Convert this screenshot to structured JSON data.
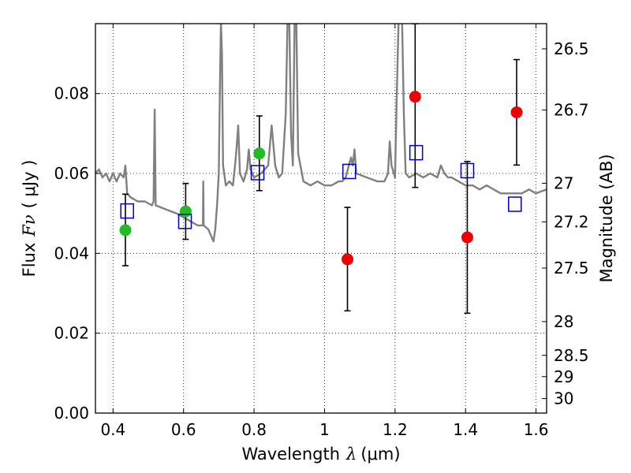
{
  "chart_data": {
    "type": "scatter",
    "xlabel": {
      "text": "Wavelength",
      "symbol": "λ",
      "unit": "(μm)"
    },
    "ylabel": {
      "text": "Flux",
      "symbol": "Fν",
      "unit": "( μJy )"
    },
    "ylabel_right": "Magnitude (AB)",
    "xlim": [
      0.35,
      1.63
    ],
    "ylim": [
      0.0,
      0.0975
    ],
    "x_ticks": [
      0.4,
      0.6,
      0.8,
      1.0,
      1.2,
      1.4,
      1.6
    ],
    "x_tick_labels": [
      "0.4",
      "0.6",
      "0.8",
      "1",
      "1.2",
      "1.4",
      "1.6"
    ],
    "y_ticks": [
      0.0,
      0.02,
      0.04,
      0.06,
      0.08
    ],
    "y_tick_labels": [
      "0.00",
      "0.02",
      "0.04",
      "0.06",
      "0.08"
    ],
    "right_ticks": [
      {
        "label": "26.5",
        "mag": 26.5
      },
      {
        "label": "26.7",
        "mag": 26.7
      },
      {
        "label": "27",
        "mag": 27.0
      },
      {
        "label": "27.2",
        "mag": 27.2
      },
      {
        "label": "27.5",
        "mag": 27.5
      },
      {
        "label": "28",
        "mag": 28.0
      },
      {
        "label": "28.5",
        "mag": 28.5
      },
      {
        "label": "29",
        "mag": 29.0
      },
      {
        "label": "30",
        "mag": 30.0
      }
    ],
    "grid": true,
    "colors": {
      "spectrum": "#808080",
      "detected_points": "#22bb22",
      "upper_points": "#ee0000",
      "model_squares": "#0000cc",
      "errorbars": "#000000"
    },
    "spectrum": [
      [
        0.35,
        0.06
      ],
      [
        0.36,
        0.061
      ],
      [
        0.37,
        0.059
      ],
      [
        0.38,
        0.06
      ],
      [
        0.39,
        0.058
      ],
      [
        0.4,
        0.06
      ],
      [
        0.41,
        0.058
      ],
      [
        0.42,
        0.06
      ],
      [
        0.43,
        0.059
      ],
      [
        0.435,
        0.062
      ],
      [
        0.44,
        0.055
      ],
      [
        0.45,
        0.054
      ],
      [
        0.47,
        0.053
      ],
      [
        0.49,
        0.053
      ],
      [
        0.51,
        0.052
      ],
      [
        0.515,
        0.053
      ],
      [
        0.518,
        0.076
      ],
      [
        0.521,
        0.052
      ],
      [
        0.55,
        0.051
      ],
      [
        0.58,
        0.05
      ],
      [
        0.6,
        0.049
      ],
      [
        0.62,
        0.048
      ],
      [
        0.64,
        0.047
      ],
      [
        0.655,
        0.047
      ],
      [
        0.656,
        0.058
      ],
      [
        0.657,
        0.047
      ],
      [
        0.67,
        0.046
      ],
      [
        0.68,
        0.044
      ],
      [
        0.685,
        0.043
      ],
      [
        0.69,
        0.046
      ],
      [
        0.695,
        0.052
      ],
      [
        0.7,
        0.06
      ],
      [
        0.703,
        0.08
      ],
      [
        0.706,
        0.098
      ],
      [
        0.709,
        0.09
      ],
      [
        0.712,
        0.062
      ],
      [
        0.72,
        0.057
      ],
      [
        0.73,
        0.058
      ],
      [
        0.74,
        0.057
      ],
      [
        0.745,
        0.061
      ],
      [
        0.75,
        0.066
      ],
      [
        0.755,
        0.072
      ],
      [
        0.76,
        0.06
      ],
      [
        0.77,
        0.058
      ],
      [
        0.78,
        0.061
      ],
      [
        0.785,
        0.066
      ],
      [
        0.79,
        0.061
      ],
      [
        0.8,
        0.059
      ],
      [
        0.82,
        0.06
      ],
      [
        0.84,
        0.062
      ],
      [
        0.85,
        0.072
      ],
      [
        0.86,
        0.062
      ],
      [
        0.87,
        0.059
      ],
      [
        0.88,
        0.06
      ],
      [
        0.89,
        0.075
      ],
      [
        0.895,
        0.098
      ],
      [
        0.9,
        0.098
      ],
      [
        0.905,
        0.07
      ],
      [
        0.91,
        0.062
      ],
      [
        0.915,
        0.098
      ],
      [
        0.92,
        0.098
      ],
      [
        0.925,
        0.065
      ],
      [
        0.94,
        0.058
      ],
      [
        0.96,
        0.057
      ],
      [
        0.98,
        0.058
      ],
      [
        1.0,
        0.057
      ],
      [
        1.02,
        0.057
      ],
      [
        1.04,
        0.058
      ],
      [
        1.05,
        0.058
      ],
      [
        1.06,
        0.059
      ],
      [
        1.075,
        0.064
      ],
      [
        1.08,
        0.062
      ],
      [
        1.085,
        0.066
      ],
      [
        1.09,
        0.06
      ],
      [
        1.12,
        0.059
      ],
      [
        1.15,
        0.058
      ],
      [
        1.17,
        0.058
      ],
      [
        1.18,
        0.06
      ],
      [
        1.185,
        0.068
      ],
      [
        1.19,
        0.062
      ],
      [
        1.2,
        0.059
      ],
      [
        1.205,
        0.08
      ],
      [
        1.21,
        0.098
      ],
      [
        1.22,
        0.098
      ],
      [
        1.225,
        0.075
      ],
      [
        1.23,
        0.06
      ],
      [
        1.24,
        0.059
      ],
      [
        1.26,
        0.06
      ],
      [
        1.28,
        0.059
      ],
      [
        1.3,
        0.06
      ],
      [
        1.32,
        0.059
      ],
      [
        1.33,
        0.062
      ],
      [
        1.34,
        0.06
      ],
      [
        1.35,
        0.059
      ],
      [
        1.36,
        0.059
      ],
      [
        1.38,
        0.058
      ],
      [
        1.4,
        0.057
      ],
      [
        1.42,
        0.057
      ],
      [
        1.44,
        0.056
      ],
      [
        1.46,
        0.057
      ],
      [
        1.48,
        0.056
      ],
      [
        1.5,
        0.055
      ],
      [
        1.52,
        0.055
      ],
      [
        1.54,
        0.055
      ],
      [
        1.56,
        0.055
      ],
      [
        1.58,
        0.056
      ],
      [
        1.6,
        0.055
      ],
      [
        1.63,
        0.056
      ]
    ],
    "series": [
      {
        "marker": "circle",
        "color": "detected_points",
        "points": [
          {
            "x": 0.435,
            "y": 0.0458,
            "err": [
              0.0369,
              0.0548
            ]
          },
          {
            "x": 0.606,
            "y": 0.0505,
            "err": [
              0.0435,
              0.0575
            ]
          },
          {
            "x": 0.815,
            "y": 0.065,
            "err": [
              0.0557,
              0.0744
            ]
          }
        ]
      },
      {
        "marker": "circle",
        "color": "upper_points",
        "points": [
          {
            "x": 1.065,
            "y": 0.0385,
            "err": [
              0.0256,
              0.0515
            ]
          },
          {
            "x": 1.257,
            "y": 0.0792,
            "err": [
              0.0565,
              0.0975
            ]
          },
          {
            "x": 1.405,
            "y": 0.044,
            "err": [
              0.025,
              0.063
            ]
          },
          {
            "x": 1.545,
            "y": 0.0753,
            "err": [
              0.0621,
              0.0885
            ]
          }
        ]
      },
      {
        "marker": "square",
        "color": "model_squares",
        "points": [
          {
            "x": 0.44,
            "y": 0.0506
          },
          {
            "x": 0.604,
            "y": 0.048
          },
          {
            "x": 0.81,
            "y": 0.0602
          },
          {
            "x": 1.07,
            "y": 0.0605
          },
          {
            "x": 1.26,
            "y": 0.0652
          },
          {
            "x": 1.405,
            "y": 0.0607
          },
          {
            "x": 1.54,
            "y": 0.0523
          }
        ]
      }
    ]
  }
}
